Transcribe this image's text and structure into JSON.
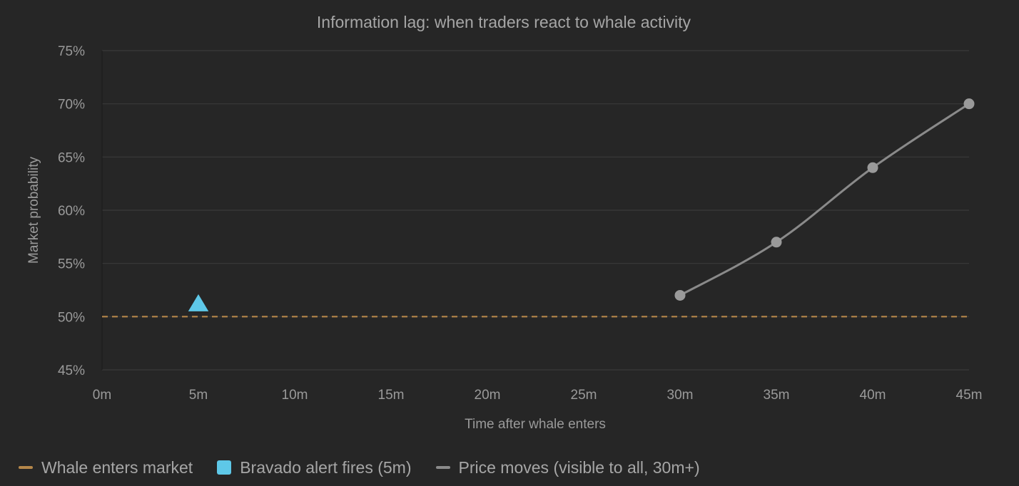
{
  "chart_data": {
    "type": "line",
    "title": "Information lag: when traders react to whale activity",
    "xlabel": "Time after whale enters",
    "ylabel": "Market probability",
    "xlim": [
      0,
      45
    ],
    "ylim": [
      45,
      75
    ],
    "x_ticks": [
      {
        "value": 0,
        "label": "0m"
      },
      {
        "value": 5,
        "label": "5m"
      },
      {
        "value": 10,
        "label": "10m"
      },
      {
        "value": 15,
        "label": "15m"
      },
      {
        "value": 20,
        "label": "20m"
      },
      {
        "value": 25,
        "label": "25m"
      },
      {
        "value": 30,
        "label": "30m"
      },
      {
        "value": 35,
        "label": "35m"
      },
      {
        "value": 40,
        "label": "40m"
      },
      {
        "value": 45,
        "label": "45m"
      }
    ],
    "y_ticks": [
      {
        "value": 45,
        "label": "45%"
      },
      {
        "value": 50,
        "label": "50%"
      },
      {
        "value": 55,
        "label": "55%"
      },
      {
        "value": 60,
        "label": "60%"
      },
      {
        "value": 65,
        "label": "65%"
      },
      {
        "value": 70,
        "label": "70%"
      },
      {
        "value": 75,
        "label": "75%"
      }
    ],
    "grid": "horizontal",
    "legend_position": "bottom-left",
    "series": [
      {
        "name": "Whale enters market",
        "kind": "dashed-hline",
        "color": "#b5874a",
        "y": 50
      },
      {
        "name": "Bravado alert fires (5m)",
        "kind": "marker-triangle",
        "color": "#5ec8e8",
        "x": 5,
        "y": 51.1
      },
      {
        "name": "Price moves (visible to all, 30m+)",
        "kind": "line-markers",
        "color": "#8a8a8a",
        "x": [
          30,
          35,
          40,
          45
        ],
        "y": [
          52,
          57,
          64,
          70
        ]
      }
    ]
  },
  "legend": [
    {
      "label": "Whale enters market",
      "swatch": "dash",
      "color": "#b5874a"
    },
    {
      "label": "Bravado alert fires (5m)",
      "swatch": "square",
      "color": "#5ec8e8"
    },
    {
      "label": "Price moves (visible to all, 30m+)",
      "swatch": "dash",
      "color": "#8a8a8a"
    }
  ]
}
